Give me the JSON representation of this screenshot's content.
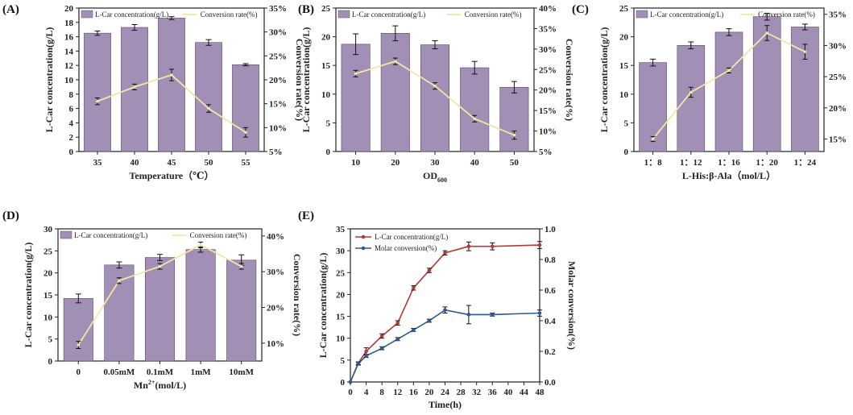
{
  "colors": {
    "bar": "#a28fb6",
    "bar_edge": "#5a4a6a",
    "line": "#f3e6a6",
    "err": "#111111",
    "red": "#b43a34",
    "blue": "#2e5a92",
    "axis": "#222222"
  },
  "chart_data": [
    {
      "id": "A",
      "panel_label": "(A)",
      "type": "bar+line",
      "categories": [
        "35",
        "40",
        "45",
        "50",
        "55"
      ],
      "bar_series": {
        "name": "L-Car concentration(g/L)",
        "values": [
          16.5,
          17.3,
          18.6,
          15.2,
          12.1
        ],
        "errors": [
          0.3,
          0.4,
          0.2,
          0.4,
          0.15
        ]
      },
      "line_series": {
        "name": "Conversion rate(%)",
        "values": [
          15.5,
          18.5,
          21.0,
          14.0,
          9.0
        ],
        "errors": [
          0.7,
          0.6,
          1.2,
          0.8,
          1.0
        ]
      },
      "xlabel": "Temperature（℃）",
      "ylabel": "L-Car concentration(g/L)",
      "y2label": "Conversion rate(%)",
      "ylim": [
        0,
        20
      ],
      "y_ticks": [
        "0",
        "2",
        "4",
        "6",
        "8",
        "10",
        "12",
        "14",
        "16",
        "18",
        "20"
      ],
      "y2lim": [
        5,
        35
      ],
      "y2_ticks": [
        "5%",
        "10%",
        "15%",
        "20%",
        "25%",
        "30%",
        "35%"
      ]
    },
    {
      "id": "B",
      "panel_label": "(B)",
      "type": "bar+line",
      "categories": [
        "10",
        "20",
        "30",
        "40",
        "50"
      ],
      "bar_series": {
        "name": "L-Car concentration(g/L)",
        "values": [
          18.7,
          20.6,
          18.6,
          14.6,
          11.2
        ],
        "errors": [
          1.8,
          1.3,
          0.7,
          1.1,
          1.0
        ]
      },
      "line_series": {
        "name": "Conversion rate(%)",
        "values": [
          24.0,
          27.0,
          21.0,
          13.0,
          9.0
        ],
        "errors": [
          0.8,
          0.8,
          0.8,
          0.8,
          1.0
        ]
      },
      "xlabel": "OD",
      "xlabel_sub": "600",
      "ylabel": "L-Car concentration(g/L)",
      "y2label": "Conversion rate(%)",
      "ylim": [
        0,
        25
      ],
      "y_ticks": [
        "0",
        "5",
        "10",
        "15",
        "20",
        "25"
      ],
      "y2lim": [
        5,
        40
      ],
      "y2_ticks": [
        "5%",
        "10%",
        "15%",
        "20%",
        "25%",
        "30%",
        "35%",
        "40%"
      ]
    },
    {
      "id": "C",
      "panel_label": "(C)",
      "type": "bar+line",
      "categories": [
        "1：8",
        "1：12",
        "1：16",
        "1：20",
        "1：24"
      ],
      "bar_series": {
        "name": "L-Car concentration(g/L)",
        "values": [
          15.5,
          18.5,
          20.8,
          23.5,
          21.7
        ],
        "errors": [
          0.6,
          0.6,
          0.6,
          0.6,
          0.5
        ]
      },
      "line_series": {
        "name": "Conversion rate(%)",
        "values": [
          15.0,
          22.5,
          26.0,
          32.0,
          29.0
        ],
        "errors": [
          0.4,
          0.8,
          0.4,
          1.2,
          1.2
        ]
      },
      "xlabel": "L-His:β-Ala（mol/L）",
      "ylabel": "L-Car concentration(g/L)",
      "y2label": "Conversion rate(%)",
      "ylim": [
        0,
        25
      ],
      "y_ticks": [
        "0",
        "5",
        "10",
        "15",
        "20",
        "25"
      ],
      "y2lim": [
        13,
        36
      ],
      "y2_ticks": [
        "15%",
        "20%",
        "25%",
        "30%",
        "35%"
      ],
      "y2_tick_values": [
        15,
        20,
        25,
        30,
        35
      ]
    },
    {
      "id": "D",
      "panel_label": "(D)",
      "type": "bar+line",
      "categories": [
        "0",
        "0.05mM",
        "0.1mM",
        "1mM",
        "10mM"
      ],
      "bar_series": {
        "name": "L-Car concentration(g/L)",
        "values": [
          14.2,
          21.8,
          23.5,
          25.3,
          22.9
        ],
        "errors": [
          1.0,
          0.7,
          0.7,
          0.6,
          1.2
        ]
      },
      "line_series": {
        "name": "Conversion rate(%)",
        "values": [
          9.5,
          27.5,
          31.5,
          37.5,
          31.5
        ],
        "errors": [
          1.0,
          0.8,
          0.8,
          0.8,
          0.8
        ]
      },
      "xlabel": "Mn",
      "xlabel_sup": "2+",
      "xlabel_tail": "(mol/L)",
      "ylabel": "L-Car concentration(g/L)",
      "y2label": "Conversion rate(%)",
      "ylim": [
        0,
        30
      ],
      "y_ticks": [
        "0",
        "5",
        "10",
        "15",
        "20",
        "25",
        "30"
      ],
      "y2lim": [
        5,
        42
      ],
      "y2_ticks": [
        "10%",
        "20%",
        "30%",
        "40%"
      ],
      "y2_tick_values": [
        10,
        20,
        30,
        40
      ]
    },
    {
      "id": "E",
      "panel_label": "(E)",
      "type": "line",
      "x": [
        0,
        2,
        4,
        8,
        12,
        16,
        20,
        24,
        30,
        36,
        48
      ],
      "series": [
        {
          "name": "L-Car concentration(g/L)",
          "axis": "left",
          "values": [
            0,
            4.3,
            7.0,
            10.5,
            13.5,
            21.5,
            25.5,
            29.5,
            31.0,
            31.0,
            31.3
          ],
          "errors": [
            0,
            0.3,
            0.8,
            0.5,
            0.5,
            0.5,
            0.5,
            0.5,
            1.0,
            0.8,
            0.8
          ]
        },
        {
          "name": "Molar conversion(%)",
          "axis": "right",
          "values": [
            0,
            0.12,
            0.17,
            0.22,
            0.28,
            0.34,
            0.4,
            0.47,
            0.44,
            0.44,
            0.45
          ],
          "errors": [
            0,
            0.01,
            0.01,
            0.01,
            0.01,
            0.01,
            0.01,
            0.02,
            0.06,
            0.01,
            0.02
          ]
        }
      ],
      "xlabel": "Time(h)",
      "ylabel": "L-Car concentration(g/L)",
      "y2label": "Molar conversion(%)",
      "xlim": [
        0,
        48
      ],
      "x_ticks": [
        "0",
        "4",
        "8",
        "12",
        "16",
        "20",
        "24",
        "28",
        "32",
        "36",
        "40",
        "44",
        "48"
      ],
      "ylim": [
        0,
        35
      ],
      "y_ticks": [
        "0",
        "5",
        "10",
        "15",
        "20",
        "25",
        "30",
        "35"
      ],
      "y2lim": [
        0,
        1.0
      ],
      "y2_ticks": [
        "0.0",
        "0.2",
        "0.4",
        "0.6",
        "0.8",
        "1.0"
      ]
    }
  ]
}
